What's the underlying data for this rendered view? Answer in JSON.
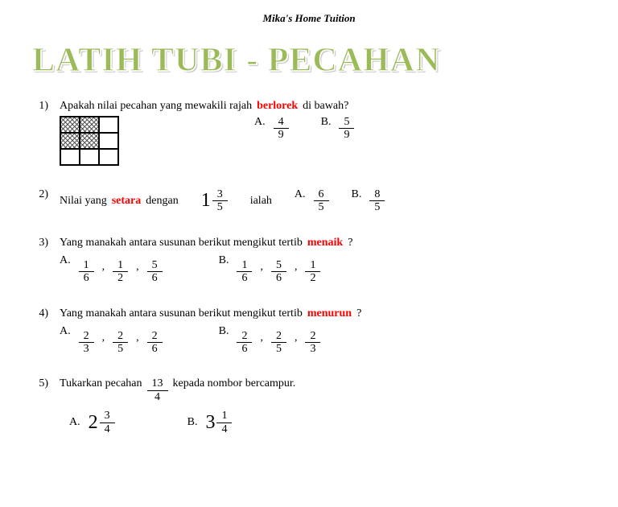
{
  "header": "Mika's Home Tuition",
  "title": "LATIH TUBI - PECAHAN",
  "highlight_color": "#ff0000",
  "title_color": "#9bbb59",
  "q1": {
    "num": "1)",
    "text_a": "Apakah nilai pecahan yang mewakili rajah ",
    "hl": "berlorek",
    "text_b": " di bawah?",
    "shaded_cells": [
      true,
      true,
      false,
      true,
      true,
      false,
      false,
      false,
      false
    ],
    "A": {
      "label": "A.",
      "n": "4",
      "d": "9"
    },
    "B": {
      "label": "B.",
      "n": "5",
      "d": "9"
    }
  },
  "q2": {
    "num": "2)",
    "text_a": "Nilai yang ",
    "hl": "setara",
    "text_b": " dengan",
    "whole": "1",
    "n": "3",
    "d": "5",
    "text_c": "ialah",
    "A": {
      "label": "A.",
      "n": "6",
      "d": "5"
    },
    "B": {
      "label": "B.",
      "n": "8",
      "d": "5"
    }
  },
  "q3": {
    "num": "3)",
    "text_a": "Yang manakah antara susunan berikut mengikut tertib ",
    "hl": "menaik",
    "text_b": "?",
    "A": {
      "label": "A.",
      "f": [
        [
          "1",
          "6"
        ],
        [
          "1",
          "2"
        ],
        [
          "5",
          "6"
        ]
      ]
    },
    "B": {
      "label": "B.",
      "f": [
        [
          "1",
          "6"
        ],
        [
          "5",
          "6"
        ],
        [
          "1",
          "2"
        ]
      ]
    }
  },
  "q4": {
    "num": "4)",
    "text_a": "Yang manakah antara susunan berikut mengikut tertib ",
    "hl": "menurun",
    "text_b": "?",
    "A": {
      "label": "A.",
      "f": [
        [
          "2",
          "3"
        ],
        [
          "2",
          "5"
        ],
        [
          "2",
          "6"
        ]
      ]
    },
    "B": {
      "label": "B.",
      "f": [
        [
          "2",
          "6"
        ],
        [
          "2",
          "5"
        ],
        [
          "2",
          "3"
        ]
      ]
    }
  },
  "q5": {
    "num": "5)",
    "text_a": "Tukarkan pecahan",
    "n": "13",
    "d": "4",
    "text_b": "kepada nombor bercampur.",
    "A": {
      "label": "A.",
      "w": "2",
      "n": "3",
      "d": "4"
    },
    "B": {
      "label": "B.",
      "w": "3",
      "n": "1",
      "d": "4"
    }
  },
  "comma": ","
}
